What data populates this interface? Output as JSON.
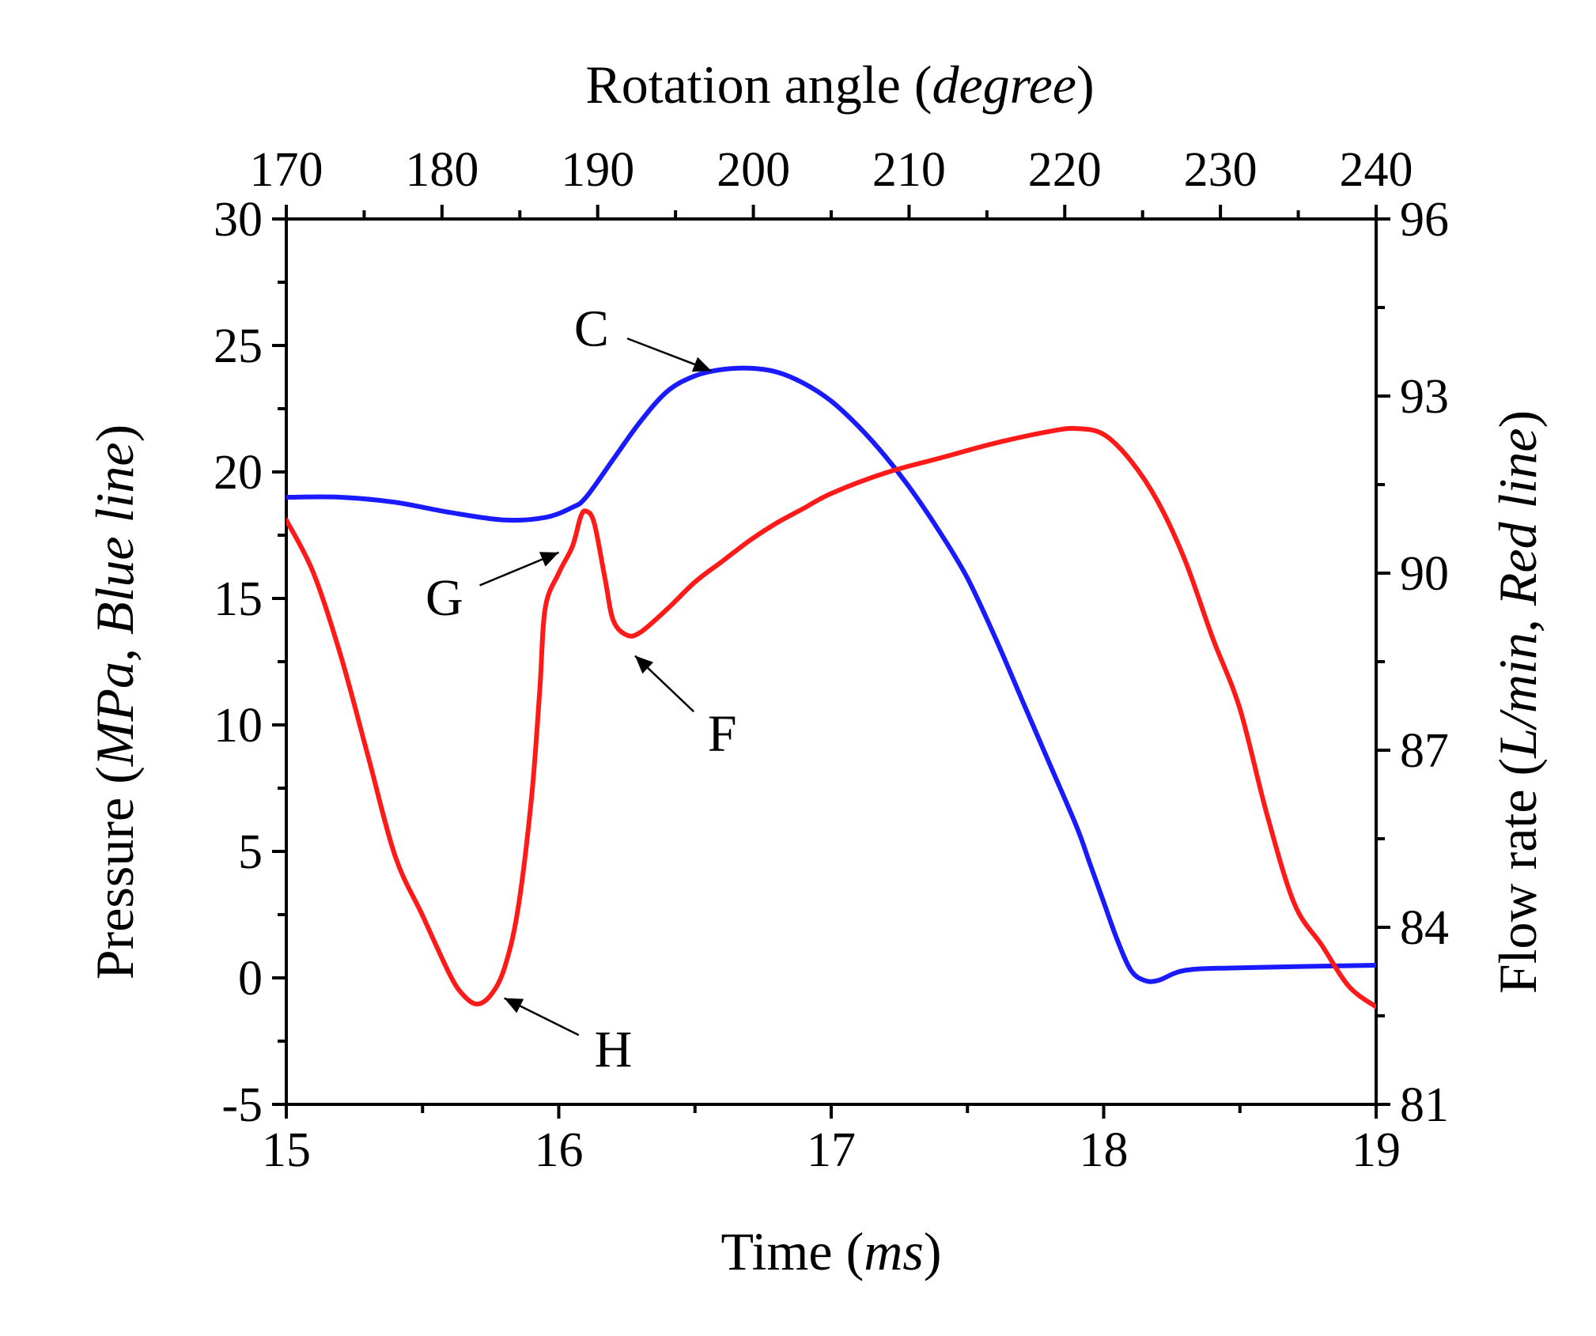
{
  "chart_data": {
    "type": "line",
    "x_bottom": {
      "label_prefix": "Time (",
      "label_italic": "ms",
      "label_suffix": ")",
      "range": [
        15,
        19
      ],
      "ticks": [
        "15",
        "16",
        "17",
        "18",
        "19"
      ]
    },
    "x_top": {
      "label_prefix": "Rotation angle (",
      "label_italic": "degree",
      "label_suffix": ")",
      "range": [
        170,
        240
      ],
      "ticks": [
        "170",
        "180",
        "190",
        "200",
        "210",
        "220",
        "230",
        "240"
      ]
    },
    "y_left": {
      "label_prefix": "Pressure (",
      "label_italic": "MPa, Blue line",
      "label_suffix": ")",
      "range": [
        -5,
        30
      ],
      "ticks": [
        "-5",
        "0",
        "5",
        "10",
        "15",
        "20",
        "25",
        "30"
      ]
    },
    "y_right": {
      "label_prefix": "Flow rate (",
      "label_italic": "L/min, Red line",
      "label_suffix": ")",
      "range": [
        81,
        96
      ],
      "ticks": [
        "81",
        "84",
        "87",
        "90",
        "93",
        "96"
      ]
    },
    "series": [
      {
        "name": "Pressure",
        "axis": "left",
        "color": "#1a1aff",
        "points": [
          [
            15.0,
            19.0
          ],
          [
            15.2,
            19.0
          ],
          [
            15.4,
            18.8
          ],
          [
            15.6,
            18.4
          ],
          [
            15.8,
            18.1
          ],
          [
            15.95,
            18.2
          ],
          [
            16.05,
            18.6
          ],
          [
            16.1,
            19.0
          ],
          [
            16.2,
            20.5
          ],
          [
            16.3,
            22.0
          ],
          [
            16.4,
            23.2
          ],
          [
            16.5,
            23.8
          ],
          [
            16.6,
            24.05
          ],
          [
            16.7,
            24.1
          ],
          [
            16.8,
            23.95
          ],
          [
            16.9,
            23.5
          ],
          [
            17.0,
            22.8
          ],
          [
            17.1,
            21.8
          ],
          [
            17.2,
            20.6
          ],
          [
            17.3,
            19.2
          ],
          [
            17.4,
            17.6
          ],
          [
            17.5,
            15.8
          ],
          [
            17.6,
            13.5
          ],
          [
            17.7,
            11.0
          ],
          [
            17.8,
            8.5
          ],
          [
            17.9,
            6.0
          ],
          [
            17.95,
            4.5
          ],
          [
            18.0,
            3.0
          ],
          [
            18.05,
            1.5
          ],
          [
            18.1,
            0.3
          ],
          [
            18.15,
            -0.1
          ],
          [
            18.2,
            -0.1
          ],
          [
            18.3,
            0.3
          ],
          [
            18.5,
            0.4
          ],
          [
            19.0,
            0.5
          ]
        ]
      },
      {
        "name": "Flow rate",
        "axis": "right",
        "color": "#ff1a1a",
        "points": [
          [
            15.0,
            90.9
          ],
          [
            15.1,
            90.0
          ],
          [
            15.2,
            88.6
          ],
          [
            15.3,
            86.9
          ],
          [
            15.4,
            85.2
          ],
          [
            15.5,
            84.2
          ],
          [
            15.6,
            83.2
          ],
          [
            15.65,
            82.85
          ],
          [
            15.7,
            82.7
          ],
          [
            15.75,
            82.85
          ],
          [
            15.8,
            83.3
          ],
          [
            15.85,
            84.3
          ],
          [
            15.9,
            86.2
          ],
          [
            15.93,
            88.0
          ],
          [
            15.95,
            89.4
          ],
          [
            16.0,
            90.0
          ],
          [
            16.05,
            90.45
          ],
          [
            16.08,
            90.95
          ],
          [
            16.1,
            91.05
          ],
          [
            16.13,
            90.85
          ],
          [
            16.17,
            89.9
          ],
          [
            16.2,
            89.2
          ],
          [
            16.25,
            88.95
          ],
          [
            16.3,
            89.0
          ],
          [
            16.4,
            89.4
          ],
          [
            16.5,
            89.85
          ],
          [
            16.6,
            90.2
          ],
          [
            16.7,
            90.55
          ],
          [
            16.8,
            90.85
          ],
          [
            16.9,
            91.1
          ],
          [
            17.0,
            91.35
          ],
          [
            17.2,
            91.7
          ],
          [
            17.4,
            91.95
          ],
          [
            17.6,
            92.2
          ],
          [
            17.8,
            92.4
          ],
          [
            17.9,
            92.45
          ],
          [
            18.0,
            92.35
          ],
          [
            18.1,
            91.9
          ],
          [
            18.2,
            91.2
          ],
          [
            18.3,
            90.2
          ],
          [
            18.4,
            88.9
          ],
          [
            18.5,
            87.7
          ],
          [
            18.6,
            85.9
          ],
          [
            18.7,
            84.4
          ],
          [
            18.8,
            83.7
          ],
          [
            18.9,
            83.0
          ],
          [
            19.0,
            82.65
          ]
        ]
      }
    ],
    "annotations": [
      {
        "label": "C",
        "axis": "left",
        "target": [
          16.56,
          24.0
        ],
        "text_at": [
          16.12,
          25.7
        ]
      },
      {
        "label": "G",
        "axis": "right",
        "target": [
          16.0,
          90.35
        ],
        "text_at": [
          15.58,
          89.6
        ]
      },
      {
        "label": "F",
        "axis": "right",
        "target": [
          16.28,
          88.6
        ],
        "text_at": [
          16.6,
          87.3
        ]
      },
      {
        "label": "H",
        "axis": "right",
        "target": [
          15.8,
          82.8
        ],
        "text_at": [
          16.2,
          81.95
        ]
      }
    ]
  }
}
